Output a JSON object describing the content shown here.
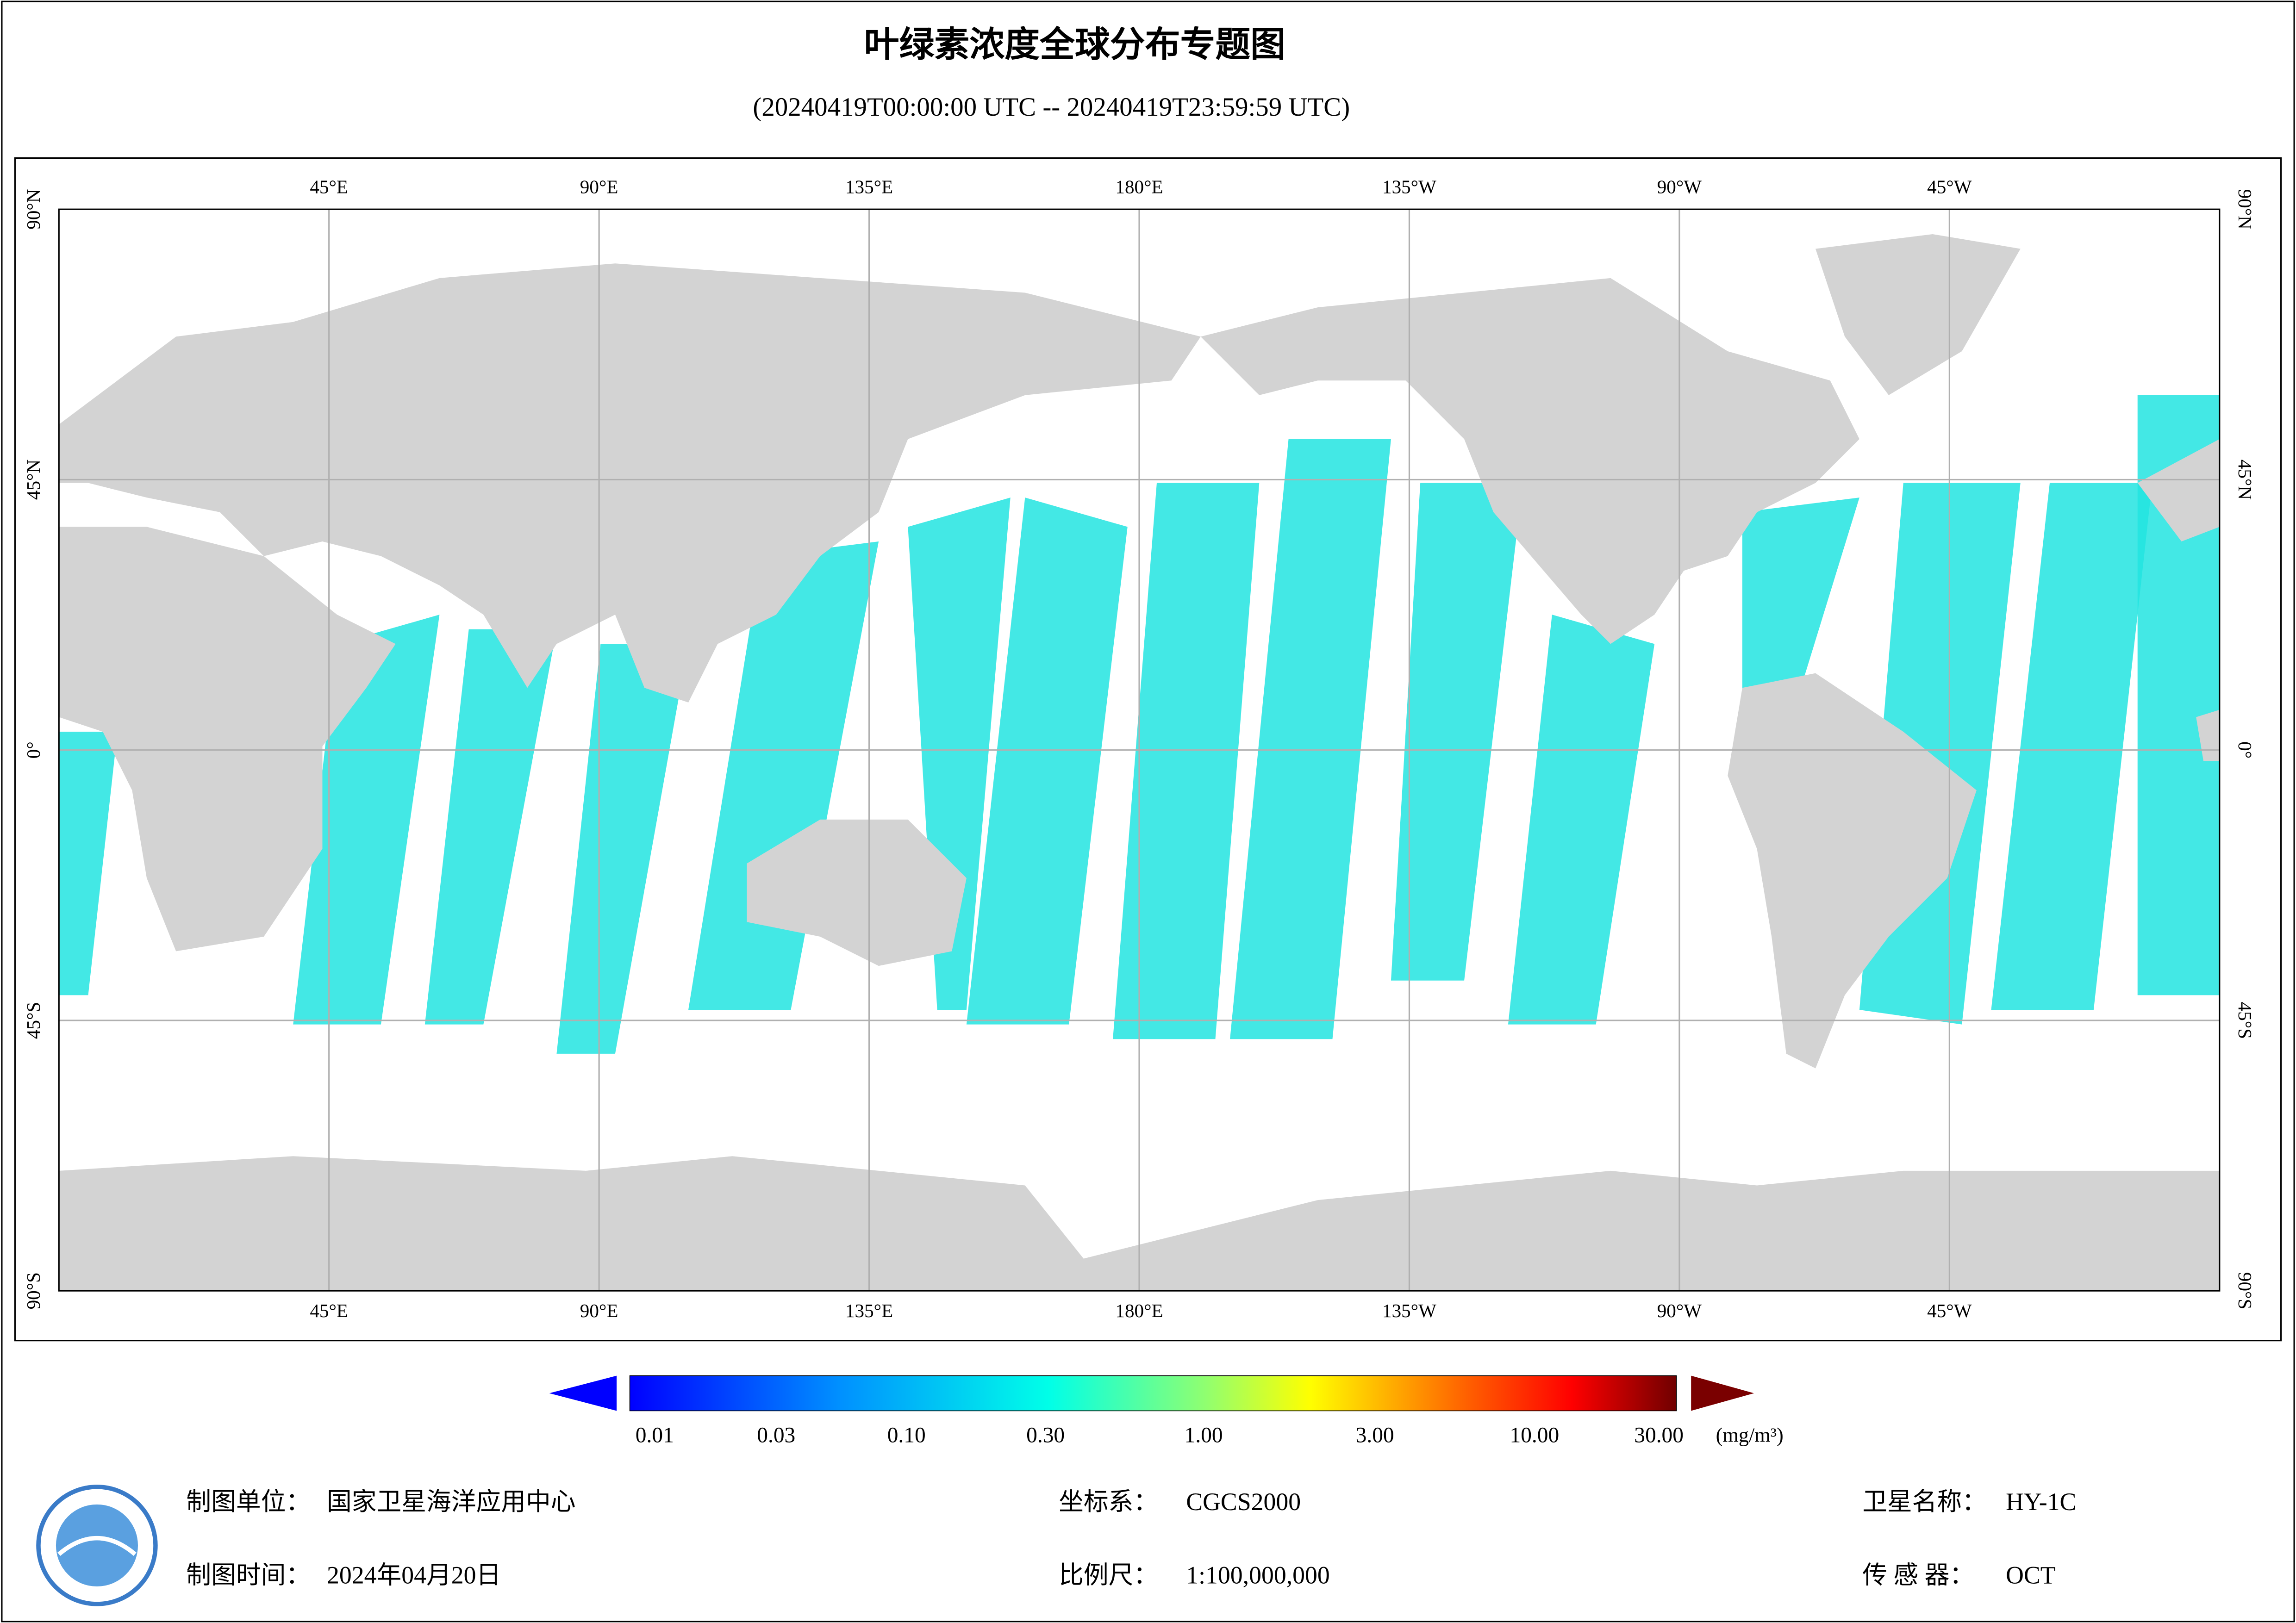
{
  "title": "叶绿素浓度全球分布专题图",
  "subtitle": "(20240419T00:00:00 UTC -- 20240419T23:59:59 UTC)",
  "map": {
    "lon_labels": [
      "45°E",
      "90°E",
      "135°E",
      "180°E",
      "135°W",
      "90°W",
      "45°W"
    ],
    "lat_labels": [
      "90°N",
      "45°N",
      "0°",
      "45°S",
      "90°S"
    ]
  },
  "colorbar": {
    "ticks": [
      "0.01",
      "0.03",
      "0.10",
      "0.30",
      "1.00",
      "3.00",
      "10.00",
      "30.00"
    ],
    "unit": "(mg/m³)"
  },
  "footer": [
    {
      "label": "制图单位：",
      "value": "国家卫星海洋应用中心"
    },
    {
      "label": "坐标系：",
      "value": "CGCS2000"
    },
    {
      "label": "卫星名称：",
      "value": "HY-1C"
    },
    {
      "label": "制图时间：",
      "value": "2024年04月20日"
    },
    {
      "label": "比例尺：",
      "value": "1:100,000,000"
    },
    {
      "label": "传 感 器：",
      "value": "OCT"
    }
  ]
}
